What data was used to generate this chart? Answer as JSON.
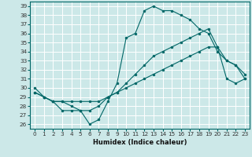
{
  "xlabel": "Humidex (Indice chaleur)",
  "bg_color": "#cce8e8",
  "grid_color": "#ffffff",
  "line_color": "#006666",
  "xlim": [
    -0.5,
    23.5
  ],
  "ylim": [
    25.5,
    39.5
  ],
  "yticks": [
    26,
    27,
    28,
    29,
    30,
    31,
    32,
    33,
    34,
    35,
    36,
    37,
    38,
    39
  ],
  "xticks": [
    0,
    1,
    2,
    3,
    4,
    5,
    6,
    7,
    8,
    9,
    10,
    11,
    12,
    13,
    14,
    15,
    16,
    17,
    18,
    19,
    20,
    21,
    22,
    23
  ],
  "line1_x": [
    0,
    1,
    2,
    3,
    4,
    5,
    6,
    7,
    8,
    9,
    10,
    11,
    12,
    13,
    14,
    15,
    16,
    17,
    18,
    19,
    20,
    21,
    22,
    23
  ],
  "line1_y": [
    30,
    29,
    28.5,
    27.5,
    27.5,
    27.5,
    26,
    26.5,
    28.5,
    30.5,
    35.5,
    36,
    38.5,
    39,
    38.5,
    38.5,
    38,
    37.5,
    36.5,
    36,
    34,
    33,
    32.5,
    31
  ],
  "line2_x": [
    0,
    1,
    2,
    3,
    4,
    5,
    6,
    7,
    8,
    9,
    10,
    11,
    12,
    13,
    14,
    15,
    16,
    17,
    18,
    19,
    20,
    21,
    22,
    23
  ],
  "line2_y": [
    29.5,
    29,
    28.5,
    28.5,
    28,
    27.5,
    27.5,
    28,
    29,
    29.5,
    30.5,
    31.5,
    32.5,
    33.5,
    34,
    34.5,
    35,
    35.5,
    36,
    36.5,
    34.5,
    33,
    32.5,
    31.5
  ],
  "line3_x": [
    0,
    1,
    2,
    3,
    4,
    5,
    6,
    7,
    8,
    9,
    10,
    11,
    12,
    13,
    14,
    15,
    16,
    17,
    18,
    19,
    20,
    21,
    22,
    23
  ],
  "line3_y": [
    29.5,
    29,
    28.5,
    28.5,
    28.5,
    28.5,
    28.5,
    28.5,
    29,
    29.5,
    30,
    30.5,
    31,
    31.5,
    32,
    32.5,
    33,
    33.5,
    34,
    34.5,
    34.5,
    31,
    30.5,
    31
  ],
  "xlabel_fontsize": 6.0,
  "tick_fontsize": 5.2
}
